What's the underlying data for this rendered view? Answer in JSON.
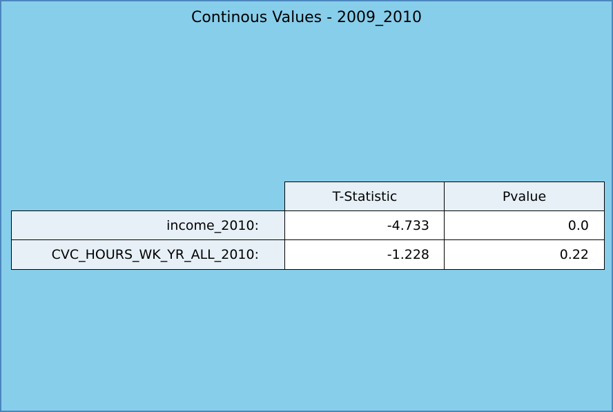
{
  "chart_data": {
    "type": "table",
    "title": "Continous Values - 2009_2010",
    "columns": [
      "T-Statistic",
      "Pvalue"
    ],
    "rows": [
      {
        "label": "income_2010:",
        "values": [
          "-4.733",
          "0.0"
        ]
      },
      {
        "label": "CVC_HOURS_WK_YR_ALL_2010:",
        "values": [
          "-1.228",
          "0.22"
        ]
      }
    ]
  },
  "colors": {
    "background": "#87ceeb",
    "border": "#4a86bd",
    "header_cell": "#e6f0f6",
    "value_cell": "#ffffff"
  }
}
